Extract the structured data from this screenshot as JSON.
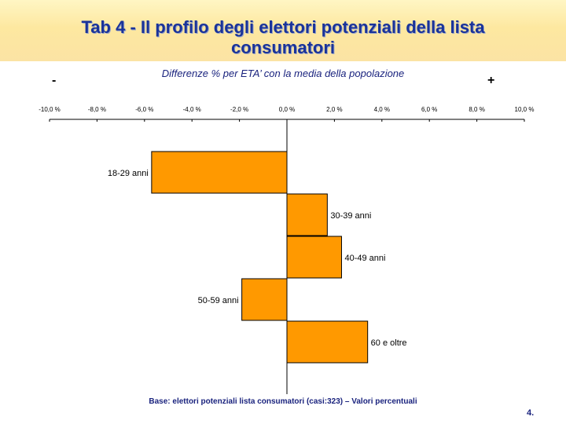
{
  "slide": {
    "title": "Tab 4 - Il profilo degli elettori potenziali della lista consumatori",
    "footnote": "Base: elettori potenziali lista consumatori (casi:323) – Valori percentuali",
    "page_number": "4."
  },
  "chart_data": {
    "type": "bar",
    "orientation": "horizontal",
    "title": "Differenze % per ETA’ con la media della popolazione",
    "negative_label": "-",
    "positive_label": "+",
    "axis_position": "top",
    "xlim": [
      -10,
      10
    ],
    "ticks": [
      -10,
      -8,
      -6,
      -4,
      -2,
      0,
      2,
      4,
      6,
      8,
      10
    ],
    "tick_labels": [
      "-10,0 %",
      "-8,0 %",
      "-6,0 %",
      "-4,0 %",
      "-2,0 %",
      "0,0 %",
      "2,0 %",
      "4,0 %",
      "6,0 %",
      "8,0 %",
      "10,0 %"
    ],
    "categories": [
      "18-29 anni",
      "30-39 anni",
      "40-49 anni",
      "50-59 anni",
      "60 e oltre"
    ],
    "values": [
      -5.7,
      1.7,
      2.3,
      -1.9,
      3.4
    ],
    "bar_color": "#ff9900",
    "grid": false,
    "legend": "none"
  }
}
